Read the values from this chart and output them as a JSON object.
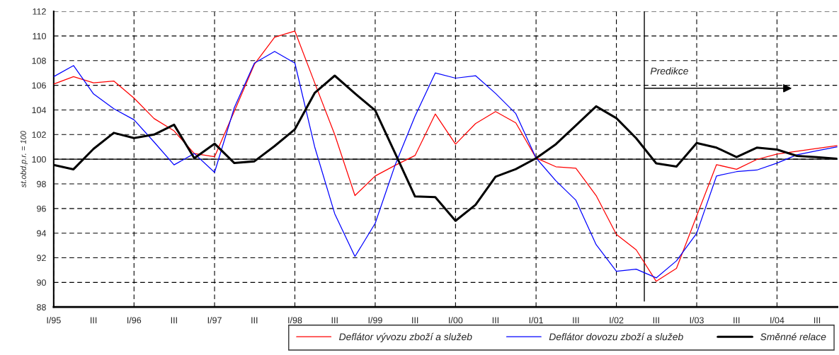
{
  "chart_data": {
    "type": "line",
    "ylabel": "st.obd.p.r. = 100",
    "x": [
      "1995-01",
      "1995-04",
      "1995-07",
      "1995-10",
      "1996-01",
      "1996-04",
      "1996-07",
      "1996-10",
      "1997-01",
      "1997-04",
      "1997-07",
      "1997-10",
      "1998-01",
      "1998-04",
      "1998-07",
      "1998-10",
      "1999-01",
      "1999-04",
      "1999-07",
      "1999-10",
      "2000-01",
      "2000-04",
      "2000-07",
      "2000-10",
      "2001-01",
      "2001-04",
      "2001-07",
      "2001-10",
      "2002-01",
      "2002-04",
      "2002-07",
      "2002-10",
      "2003-01",
      "2003-04",
      "2003-07",
      "2003-10",
      "2004-01",
      "2004-04",
      "2004-07",
      "2004-10"
    ],
    "series": [
      {
        "name": "Deflátor vývozu zboží a služeb",
        "color": "#ff0000",
        "values": [
          106.1,
          106.7,
          106.2,
          106.35,
          104.96,
          103.3,
          102.3,
          100.46,
          100.2,
          103.9,
          107.7,
          109.9,
          110.4,
          106.2,
          102.0,
          97.05,
          98.64,
          99.5,
          100.3,
          103.67,
          101.22,
          102.89,
          103.87,
          102.95,
          100.1,
          99.39,
          99.27,
          97.05,
          93.9,
          92.65,
          90.09,
          91.14,
          95.4,
          99.56,
          99.18,
          99.98,
          100.42,
          100.65,
          100.88,
          101.1
        ]
      },
      {
        "name": "Deflátor dovozu zboží a služeb",
        "color": "#0000ff",
        "values": [
          106.7,
          107.6,
          105.3,
          104.1,
          103.2,
          101.4,
          99.54,
          100.46,
          98.93,
          104.2,
          107.8,
          108.75,
          107.8,
          101.0,
          95.58,
          92.1,
          94.8,
          99.5,
          103.5,
          107.0,
          106.58,
          106.78,
          105.34,
          103.7,
          100.1,
          98.25,
          96.67,
          93.07,
          90.91,
          91.08,
          90.37,
          91.75,
          93.99,
          98.64,
          98.99,
          99.12,
          99.69,
          100.36,
          100.69,
          101.0
        ]
      },
      {
        "name": "Směnné relace",
        "color": "#000000",
        "values": [
          99.54,
          99.18,
          100.84,
          102.14,
          101.72,
          102.0,
          102.8,
          100.08,
          101.26,
          99.69,
          99.83,
          101.07,
          102.43,
          105.38,
          106.78,
          105.34,
          103.96,
          100.5,
          96.98,
          96.92,
          95.0,
          96.3,
          98.58,
          99.2,
          100.08,
          101.22,
          102.74,
          104.29,
          103.33,
          101.7,
          99.66,
          99.41,
          101.32,
          100.94,
          100.17,
          100.94,
          100.78,
          100.27,
          100.17,
          100.04
        ]
      }
    ],
    "xlim": [
      "1995-01",
      "2004-10"
    ],
    "xticks": [
      {
        "value": "1995-01",
        "label": "I/95"
      },
      {
        "value": "1995-07",
        "label": "III"
      },
      {
        "value": "1996-01",
        "label": "I/96"
      },
      {
        "value": "1996-07",
        "label": "III"
      },
      {
        "value": "1997-01",
        "label": "I/97"
      },
      {
        "value": "1997-07",
        "label": "III"
      },
      {
        "value": "1998-01",
        "label": "I/98"
      },
      {
        "value": "1998-07",
        "label": "III"
      },
      {
        "value": "1999-01",
        "label": "I/99"
      },
      {
        "value": "1999-07",
        "label": "III"
      },
      {
        "value": "2000-01",
        "label": "I/00"
      },
      {
        "value": "2000-07",
        "label": "III"
      },
      {
        "value": "2001-01",
        "label": "I/01"
      },
      {
        "value": "2001-07",
        "label": "III"
      },
      {
        "value": "2002-01",
        "label": "I/02"
      },
      {
        "value": "2002-07",
        "label": "III"
      },
      {
        "value": "2003-01",
        "label": "I/03"
      },
      {
        "value": "2003-07",
        "label": "III"
      },
      {
        "value": "2004-01",
        "label": "I/04"
      },
      {
        "value": "2004-07",
        "label": "III"
      }
    ],
    "ylim": [
      88,
      112
    ],
    "yticks": [
      88,
      90,
      92,
      94,
      96,
      98,
      100,
      102,
      104,
      106,
      108,
      110,
      112
    ],
    "ref_lines": [
      {
        "axis": "y",
        "value": 100,
        "color": "#000000"
      },
      {
        "axis": "x",
        "value": "2002-05-08",
        "color": "#000000",
        "label": "Predikce"
      }
    ],
    "grid": true,
    "legend": "bottom",
    "line_style": "solid",
    "marker": "none"
  }
}
